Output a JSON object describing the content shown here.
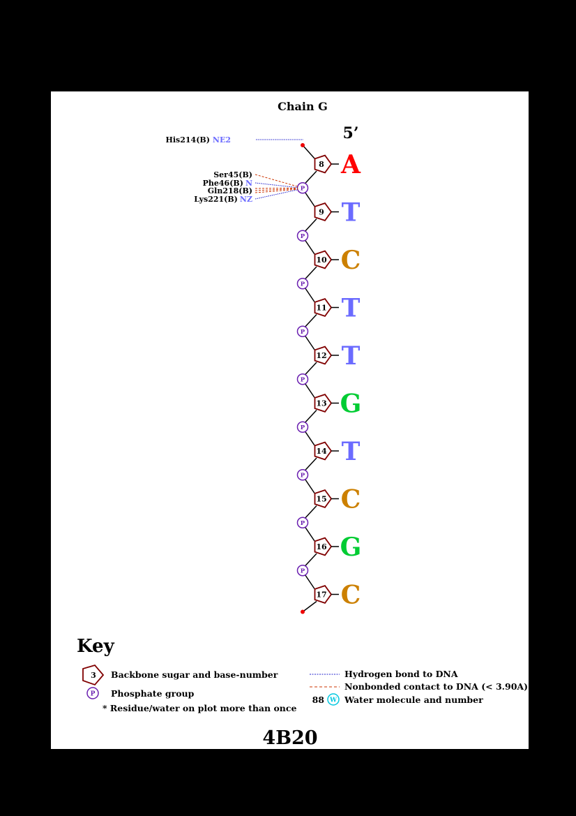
{
  "title": "Chain G",
  "pdb_id": "4B20",
  "five_prime_label": "5’",
  "colors": {
    "sugar": "#800000",
    "phosphate": "#6a1fb0",
    "hbond": "#2020cc",
    "nonbonded": "#cc3300",
    "atom_label": "#6b6bff",
    "water": "#00c8e0",
    "A": "#ff0000",
    "T": "#6b6bff",
    "C": "#cc8000",
    "G": "#00cc33"
  },
  "phosphate_symbol": "P",
  "water_symbol": "W",
  "nucleotides": [
    {
      "number": "8",
      "base": "A"
    },
    {
      "number": "9",
      "base": "T"
    },
    {
      "number": "10",
      "base": "C"
    },
    {
      "number": "11",
      "base": "T"
    },
    {
      "number": "12",
      "base": "T"
    },
    {
      "number": "13",
      "base": "G"
    },
    {
      "number": "14",
      "base": "T"
    },
    {
      "number": "15",
      "base": "C"
    },
    {
      "number": "16",
      "base": "G"
    },
    {
      "number": "17",
      "base": "C"
    }
  ],
  "interactions": [
    {
      "residue": "His214(B)",
      "atom": "NE2",
      "type": "hbond",
      "target": "5' end"
    },
    {
      "residue": "Ser45(B)",
      "atom": "",
      "type": "nonbonded",
      "target": "phosphate 9"
    },
    {
      "residue": "Phe46(B)",
      "atom": "N",
      "type": "hbond",
      "target": "phosphate 9"
    },
    {
      "residue": "Gln218(B)",
      "atom": "",
      "type": "nonbonded",
      "target": "phosphate 9"
    },
    {
      "residue": "Lys221(B)",
      "atom": "NZ",
      "type": "hbond",
      "target": "phosphate 9"
    }
  ],
  "key": {
    "heading": "Key",
    "sugar_sample_number": "3",
    "sugar_label": "Backbone sugar and base-number",
    "phosphate_label": "Phosphate group",
    "multiple_label": "* Residue/water on plot more than once",
    "hbond_label": "Hydrogen bond to DNA",
    "nonbonded_label": "Nonbonded contact to DNA (< 3.90A)",
    "water_sample_number": "88",
    "water_label": "Water molecule and number"
  }
}
